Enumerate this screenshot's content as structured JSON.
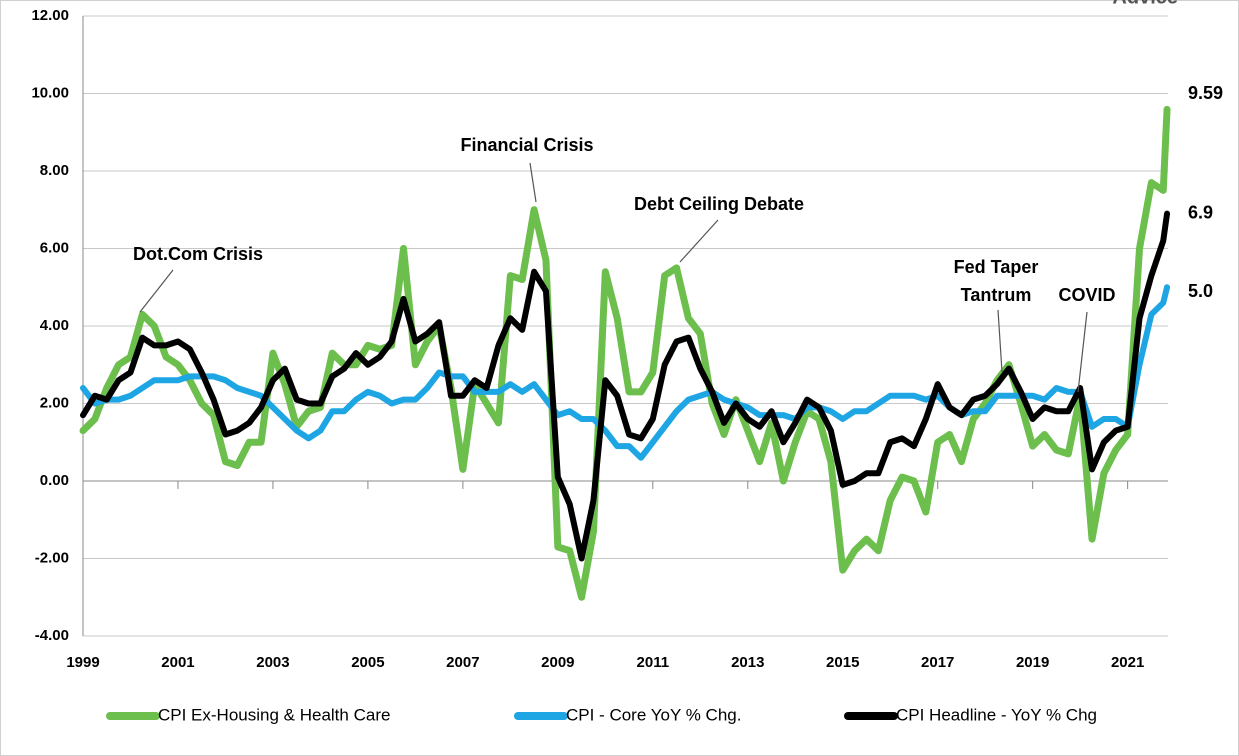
{
  "chart_data": {
    "type": "line",
    "logo_text": "Advice",
    "x": [
      1999,
      1999.25,
      1999.5,
      1999.75,
      2000,
      2000.25,
      2000.5,
      2000.75,
      2001,
      2001.25,
      2001.5,
      2001.75,
      2002,
      2002.25,
      2002.5,
      2002.75,
      2003,
      2003.25,
      2003.5,
      2003.75,
      2004,
      2004.25,
      2004.5,
      2004.75,
      2005,
      2005.25,
      2005.5,
      2005.75,
      2006,
      2006.25,
      2006.5,
      2006.75,
      2007,
      2007.25,
      2007.5,
      2007.75,
      2008,
      2008.25,
      2008.5,
      2008.75,
      2009,
      2009.25,
      2009.5,
      2009.75,
      2010,
      2010.25,
      2010.5,
      2010.75,
      2011,
      2011.25,
      2011.5,
      2011.75,
      2012,
      2012.25,
      2012.5,
      2012.75,
      2013,
      2013.25,
      2013.5,
      2013.75,
      2014,
      2014.25,
      2014.5,
      2014.75,
      2015,
      2015.25,
      2015.5,
      2015.75,
      2016,
      2016.25,
      2016.5,
      2016.75,
      2017,
      2017.25,
      2017.5,
      2017.75,
      2018,
      2018.25,
      2018.5,
      2018.75,
      2019,
      2019.25,
      2019.5,
      2019.75,
      2020,
      2020.25,
      2020.5,
      2020.75,
      2021,
      2021.25,
      2021.5,
      2021.75,
      2021.83
    ],
    "series": [
      {
        "name": "CPI Ex-Housing & Health Care",
        "color": "#6cbf4c",
        "end_label": "9.59",
        "values": [
          1.3,
          1.6,
          2.4,
          3.0,
          3.2,
          4.3,
          4.0,
          3.2,
          3.0,
          2.6,
          2.0,
          1.7,
          0.5,
          0.4,
          1.0,
          1.0,
          3.3,
          2.5,
          1.4,
          1.8,
          1.9,
          3.3,
          3.0,
          3.0,
          3.5,
          3.4,
          3.5,
          6.0,
          3.0,
          3.6,
          4.0,
          2.4,
          0.3,
          2.5,
          2.0,
          1.5,
          5.3,
          5.2,
          7.0,
          5.7,
          -1.7,
          -1.8,
          -3.0,
          -1.3,
          5.4,
          4.2,
          2.3,
          2.3,
          2.8,
          5.3,
          5.5,
          4.2,
          3.8,
          2.0,
          1.2,
          2.1,
          1.3,
          0.5,
          1.5,
          0.0,
          1.0,
          1.8,
          1.6,
          0.5,
          -2.3,
          -1.8,
          -1.5,
          -1.8,
          -0.5,
          0.1,
          0.0,
          -0.8,
          1.0,
          1.2,
          0.5,
          1.6,
          2.0,
          2.6,
          3.0,
          2.0,
          0.9,
          1.2,
          0.8,
          0.7,
          2.2,
          -1.5,
          0.2,
          0.8,
          1.2,
          6.0,
          7.7,
          7.5,
          9.59
        ]
      },
      {
        "name": "CPI - Core YoY % Chg.",
        "color": "#1ea5e3",
        "end_label": "5.0",
        "values": [
          2.4,
          2.0,
          2.1,
          2.1,
          2.2,
          2.4,
          2.6,
          2.6,
          2.6,
          2.7,
          2.7,
          2.7,
          2.6,
          2.4,
          2.3,
          2.2,
          1.9,
          1.6,
          1.3,
          1.1,
          1.3,
          1.8,
          1.8,
          2.1,
          2.3,
          2.2,
          2.0,
          2.1,
          2.1,
          2.4,
          2.8,
          2.7,
          2.7,
          2.3,
          2.3,
          2.3,
          2.5,
          2.3,
          2.5,
          2.1,
          1.7,
          1.8,
          1.6,
          1.6,
          1.3,
          0.9,
          0.9,
          0.6,
          1.0,
          1.4,
          1.8,
          2.1,
          2.2,
          2.3,
          2.1,
          2.0,
          1.9,
          1.7,
          1.7,
          1.7,
          1.6,
          1.9,
          1.9,
          1.8,
          1.6,
          1.8,
          1.8,
          2.0,
          2.2,
          2.2,
          2.2,
          2.1,
          2.2,
          1.9,
          1.7,
          1.8,
          1.8,
          2.2,
          2.2,
          2.2,
          2.2,
          2.1,
          2.4,
          2.3,
          2.3,
          1.4,
          1.6,
          1.6,
          1.4,
          3.0,
          4.3,
          4.6,
          5.0
        ]
      },
      {
        "name": "CPI Headline - YoY % Chg",
        "color": "#000000",
        "end_label": "6.9",
        "values": [
          1.7,
          2.2,
          2.1,
          2.6,
          2.8,
          3.7,
          3.5,
          3.5,
          3.6,
          3.4,
          2.8,
          2.1,
          1.2,
          1.3,
          1.5,
          1.9,
          2.6,
          2.9,
          2.1,
          2.0,
          2.0,
          2.7,
          2.9,
          3.3,
          3.0,
          3.2,
          3.6,
          4.7,
          3.6,
          3.8,
          4.1,
          2.2,
          2.2,
          2.6,
          2.4,
          3.5,
          4.2,
          3.9,
          5.4,
          4.9,
          0.1,
          -0.6,
          -2.0,
          -0.5,
          2.6,
          2.2,
          1.2,
          1.1,
          1.6,
          3.0,
          3.6,
          3.7,
          2.9,
          2.3,
          1.5,
          2.0,
          1.6,
          1.4,
          1.8,
          1.0,
          1.5,
          2.1,
          1.9,
          1.3,
          -0.1,
          0.0,
          0.2,
          0.2,
          1.0,
          1.1,
          0.9,
          1.6,
          2.5,
          1.9,
          1.7,
          2.1,
          2.2,
          2.5,
          2.9,
          2.3,
          1.6,
          1.9,
          1.8,
          1.8,
          2.4,
          0.3,
          1.0,
          1.3,
          1.4,
          4.2,
          5.3,
          6.2,
          6.9
        ]
      }
    ],
    "xlim": [
      1999,
      2021.85
    ],
    "xticks": [
      1999,
      2001,
      2003,
      2005,
      2007,
      2009,
      2011,
      2013,
      2015,
      2017,
      2019,
      2021
    ],
    "ylim": [
      -4,
      12
    ],
    "yticks": [
      {
        "value": -4,
        "label": "-4.00"
      },
      {
        "value": -2,
        "label": "-2.00"
      },
      {
        "value": 0,
        "label": "0.00"
      },
      {
        "value": 2,
        "label": "2.00"
      },
      {
        "value": 4,
        "label": "4.00"
      },
      {
        "value": 6,
        "label": "6.00"
      },
      {
        "value": 8,
        "label": "8.00"
      },
      {
        "value": 10,
        "label": "10.00"
      },
      {
        "value": 12,
        "label": "12.00"
      }
    ],
    "grid": true,
    "legend": "bottom",
    "annotations": [
      {
        "text": "Dot.Com Crisis"
      },
      {
        "text": "Financial Crisis"
      },
      {
        "text": "Debt Ceiling Debate"
      },
      {
        "text": "Fed Taper"
      },
      {
        "text": "Tantrum"
      },
      {
        "text": "COVID"
      }
    ]
  }
}
